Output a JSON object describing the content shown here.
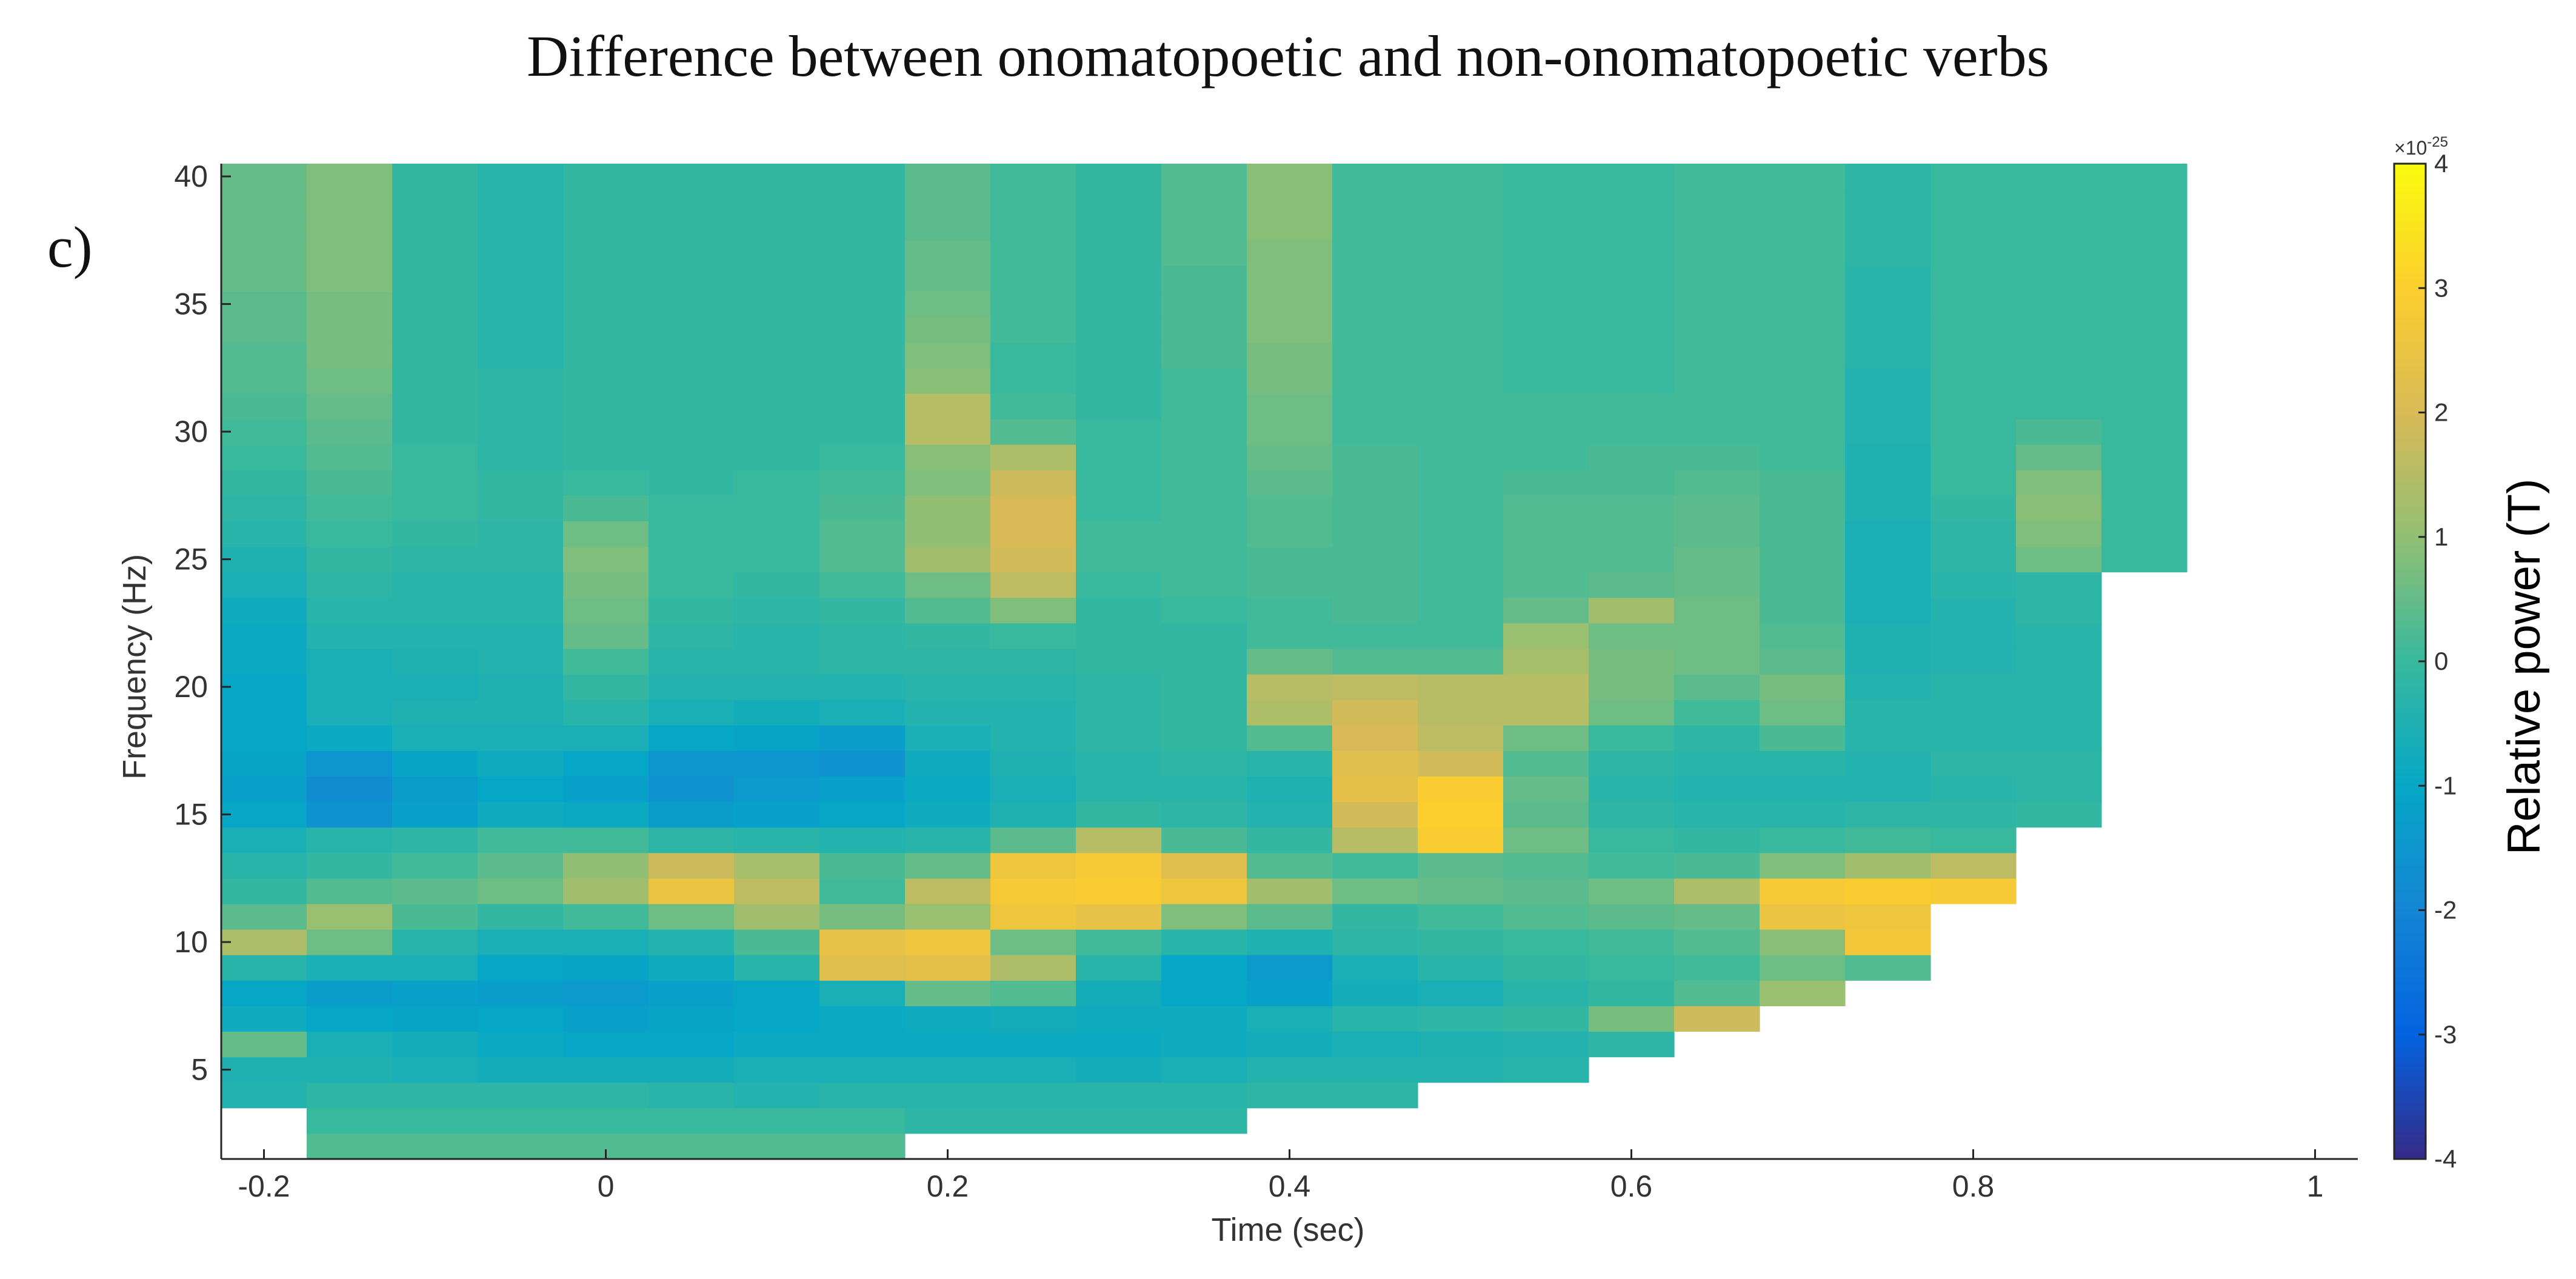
{
  "chart_data": {
    "type": "heatmap",
    "title": "Difference between onomatopoetic and non-onomatopoetic verbs",
    "panel_label": "c)",
    "xlabel": "Time (sec)",
    "ylabel": "Frequency (Hz)",
    "xlim": [
      -0.225,
      1.025
    ],
    "ylim": [
      1.5,
      40.5
    ],
    "x_ticks": [
      -0.2,
      0,
      0.2,
      0.4,
      0.6,
      0.8,
      1
    ],
    "x_tick_labels": [
      "-0.2",
      "0",
      "0.2",
      "0.4",
      "0.6",
      "0.8",
      "1"
    ],
    "y_ticks": [
      5,
      10,
      15,
      20,
      25,
      30,
      35,
      40
    ],
    "y_tick_labels": [
      "5",
      "10",
      "15",
      "20",
      "25",
      "30",
      "35",
      "40"
    ],
    "colorbar": {
      "label": "Relative power (T)",
      "exponent_base": "×10",
      "exponent_power": "-25",
      "range": [
        -4,
        4
      ],
      "ticks": [
        -4,
        -3,
        -2,
        -1,
        0,
        1,
        2,
        3,
        4
      ],
      "tick_labels": [
        "-4",
        "-3",
        "-2",
        "-1",
        "0",
        "1",
        "2",
        "3",
        "4"
      ],
      "colormap": "parula"
    },
    "grid": false,
    "times": [
      -0.2,
      -0.15,
      -0.1,
      -0.05,
      0,
      0.05,
      0.1,
      0.15,
      0.2,
      0.25,
      0.3,
      0.35,
      0.4,
      0.45,
      0.5,
      0.55,
      0.6,
      0.65,
      0.7,
      0.75,
      0.8,
      0.85,
      0.9
    ],
    "frequencies": [
      2,
      3,
      4,
      5,
      6,
      7,
      8,
      9,
      10,
      11,
      12,
      13,
      14,
      15,
      16,
      17,
      18,
      19,
      20,
      21,
      22,
      23,
      24,
      25,
      26,
      27,
      28,
      29,
      30,
      31,
      32,
      33,
      34,
      35,
      36,
      37,
      38,
      39,
      40
    ],
    "values": [
      [
        null,
        0.3,
        0.3,
        0.3,
        0.3,
        0.3,
        0.3,
        0.3,
        null,
        null,
        null,
        null,
        null,
        null,
        null,
        null,
        null,
        null,
        null,
        null,
        null,
        null,
        null
      ],
      [
        null,
        0.0,
        0.0,
        0.0,
        0.0,
        0.0,
        0.0,
        0.0,
        -0.2,
        -0.2,
        -0.2,
        -0.2,
        null,
        null,
        null,
        null,
        null,
        null,
        null,
        null,
        null,
        null,
        null
      ],
      [
        -0.4,
        -0.2,
        -0.2,
        -0.2,
        -0.2,
        -0.3,
        -0.4,
        -0.3,
        -0.3,
        -0.3,
        -0.3,
        -0.3,
        -0.2,
        -0.2,
        null,
        null,
        null,
        null,
        null,
        null,
        null,
        null,
        null
      ],
      [
        -0.5,
        -0.5,
        -0.6,
        -0.7,
        -0.7,
        -0.7,
        -0.6,
        -0.6,
        -0.6,
        -0.6,
        -0.7,
        -0.6,
        -0.4,
        -0.4,
        -0.4,
        -0.3,
        null,
        null,
        null,
        null,
        null,
        null,
        null
      ],
      [
        0.5,
        -0.6,
        -0.7,
        -0.9,
        -1.0,
        -1.0,
        -0.9,
        -0.9,
        -0.9,
        -0.9,
        -0.9,
        -0.8,
        -0.7,
        -0.6,
        -0.5,
        -0.4,
        -0.2,
        null,
        null,
        null,
        null,
        null,
        null
      ],
      [
        -0.8,
        -1.0,
        -1.1,
        -1.0,
        -1.2,
        -1.1,
        -1.0,
        -0.9,
        -0.8,
        -0.7,
        -0.8,
        -0.8,
        -0.6,
        -0.3,
        -0.2,
        -0.1,
        0.7,
        1.8,
        null,
        null,
        null,
        null,
        null
      ],
      [
        -1.0,
        -1.3,
        -1.2,
        -1.3,
        -1.4,
        -1.2,
        -1.0,
        -0.6,
        0.5,
        0.3,
        -0.7,
        -1.0,
        -1.2,
        -0.7,
        -0.6,
        -0.3,
        -0.1,
        0.3,
        1.1,
        null,
        null,
        null,
        null
      ],
      [
        -0.3,
        -0.6,
        -0.6,
        -1.0,
        -1.1,
        -0.8,
        -0.3,
        2.2,
        2.3,
        1.4,
        -0.3,
        -1.0,
        -1.4,
        -0.6,
        -0.3,
        -0.1,
        0.0,
        0.1,
        0.6,
        0.3,
        null,
        null,
        null
      ],
      [
        1.4,
        0.6,
        -0.3,
        -0.6,
        -0.6,
        -0.4,
        0.2,
        2.4,
        2.6,
        0.6,
        0.1,
        -0.3,
        -0.5,
        -0.2,
        -0.1,
        0.0,
        0.1,
        0.3,
        0.9,
        2.7,
        null,
        null,
        null
      ],
      [
        0.4,
        1.1,
        0.2,
        -0.1,
        0.1,
        0.6,
        1.2,
        0.7,
        1.1,
        2.6,
        2.4,
        0.8,
        0.4,
        -0.1,
        0.1,
        0.3,
        0.4,
        0.5,
        2.5,
        2.6,
        null,
        null,
        null
      ],
      [
        -0.1,
        0.3,
        0.4,
        0.6,
        1.2,
        2.5,
        1.6,
        0.1,
        1.6,
        2.8,
        2.9,
        2.6,
        1.2,
        0.6,
        0.5,
        0.4,
        0.6,
        1.4,
        2.8,
        2.9,
        2.8,
        null,
        null
      ],
      [
        -0.3,
        -0.1,
        0.1,
        0.4,
        1.0,
        1.8,
        1.3,
        0.2,
        0.5,
        2.6,
        2.8,
        2.2,
        0.3,
        0.1,
        0.4,
        0.3,
        0.1,
        0.2,
        0.8,
        1.2,
        1.6,
        null,
        null
      ],
      [
        -0.6,
        -0.3,
        -0.2,
        0.1,
        0.1,
        -0.2,
        -0.3,
        -0.4,
        -0.3,
        0.4,
        1.5,
        0.2,
        -0.1,
        1.5,
        2.9,
        0.6,
        0.0,
        -0.1,
        0.0,
        0.1,
        0.0,
        null,
        null
      ],
      [
        -1.0,
        -1.6,
        -1.2,
        -0.8,
        -0.9,
        -1.3,
        -1.2,
        -1.0,
        -0.8,
        -0.5,
        -0.1,
        -0.2,
        -0.4,
        1.9,
        3.0,
        0.4,
        -0.2,
        -0.3,
        -0.3,
        -0.2,
        -0.2,
        -0.1,
        null
      ],
      [
        -1.2,
        -1.8,
        -1.3,
        -1.0,
        -1.2,
        -1.6,
        -1.4,
        -1.2,
        -0.9,
        -0.6,
        -0.3,
        -0.3,
        -0.5,
        2.3,
        2.9,
        0.5,
        -0.3,
        -0.4,
        -0.4,
        -0.4,
        -0.3,
        -0.2,
        null
      ],
      [
        -1.1,
        -1.5,
        -1.1,
        -0.8,
        -1.0,
        -1.5,
        -1.5,
        -1.6,
        -0.8,
        -0.5,
        -0.3,
        -0.2,
        -0.3,
        2.2,
        1.9,
        0.3,
        -0.2,
        -0.3,
        -0.3,
        -0.4,
        -0.2,
        -0.2,
        null
      ],
      [
        -1.0,
        -0.9,
        -0.6,
        -0.6,
        -0.6,
        -1.0,
        -1.1,
        -1.3,
        -0.6,
        -0.4,
        -0.2,
        -0.1,
        0.3,
        2.0,
        1.6,
        0.6,
        0.0,
        -0.2,
        0.2,
        -0.3,
        -0.3,
        -0.3,
        null
      ],
      [
        -1.0,
        -0.6,
        -0.5,
        -0.5,
        -0.3,
        -0.6,
        -0.7,
        -0.6,
        -0.4,
        -0.4,
        -0.2,
        -0.1,
        1.4,
        1.9,
        1.5,
        1.5,
        0.6,
        0.1,
        0.6,
        -0.3,
        -0.3,
        -0.3,
        null
      ],
      [
        -1.0,
        -0.6,
        -0.6,
        -0.5,
        -0.1,
        -0.4,
        -0.4,
        -0.4,
        -0.3,
        -0.3,
        -0.2,
        -0.1,
        1.5,
        1.6,
        1.5,
        1.5,
        0.7,
        0.4,
        0.7,
        -0.4,
        -0.3,
        -0.3,
        null
      ],
      [
        -0.9,
        -0.6,
        -0.5,
        -0.4,
        0.1,
        -0.3,
        -0.3,
        -0.2,
        -0.2,
        -0.2,
        -0.1,
        -0.1,
        0.5,
        0.3,
        0.3,
        1.3,
        0.7,
        0.6,
        0.4,
        -0.5,
        -0.4,
        -0.3,
        null
      ],
      [
        -0.9,
        -0.4,
        -0.4,
        -0.4,
        0.5,
        -0.2,
        -0.3,
        -0.2,
        -0.1,
        0.0,
        -0.1,
        -0.1,
        0.1,
        0.1,
        0.1,
        1.1,
        0.6,
        0.6,
        0.3,
        -0.5,
        -0.4,
        -0.3,
        null
      ],
      [
        -0.8,
        -0.3,
        -0.3,
        -0.3,
        0.6,
        -0.1,
        -0.2,
        -0.1,
        0.3,
        0.8,
        -0.1,
        0.0,
        0.1,
        0.2,
        0.1,
        0.5,
        1.2,
        0.6,
        0.2,
        -0.6,
        -0.4,
        -0.2,
        null
      ],
      [
        -0.6,
        -0.2,
        -0.3,
        -0.3,
        0.7,
        0.0,
        -0.1,
        0.1,
        0.6,
        1.6,
        0.0,
        0.1,
        0.2,
        0.2,
        0.1,
        0.3,
        0.4,
        0.5,
        0.2,
        -0.6,
        -0.3,
        -0.2,
        null
      ],
      [
        -0.5,
        -0.1,
        -0.2,
        -0.2,
        0.8,
        0.0,
        0.0,
        0.3,
        1.2,
        1.9,
        0.1,
        0.1,
        0.2,
        0.2,
        0.1,
        0.3,
        0.3,
        0.5,
        0.2,
        -0.6,
        -0.2,
        0.6,
        0.0
      ],
      [
        -0.3,
        0.0,
        -0.1,
        -0.2,
        0.6,
        0.0,
        0.0,
        0.3,
        1.0,
        2.0,
        0.1,
        0.1,
        0.3,
        0.2,
        0.1,
        0.3,
        0.3,
        0.4,
        0.2,
        -0.6,
        -0.2,
        0.8,
        0.0
      ],
      [
        -0.2,
        0.1,
        0.0,
        -0.1,
        0.2,
        0.0,
        0.0,
        0.2,
        1.0,
        2.0,
        0.0,
        0.1,
        0.3,
        0.2,
        0.1,
        0.3,
        0.3,
        0.4,
        0.2,
        -0.5,
        -0.1,
        0.9,
        0.0
      ],
      [
        -0.1,
        0.2,
        0.0,
        -0.1,
        0.0,
        -0.1,
        0.0,
        0.1,
        0.8,
        1.8,
        0.0,
        0.1,
        0.4,
        0.2,
        0.1,
        0.2,
        0.2,
        0.3,
        0.2,
        -0.5,
        0.0,
        0.8,
        0.0
      ],
      [
        0.0,
        0.3,
        0.0,
        -0.2,
        -0.1,
        -0.1,
        -0.1,
        0.0,
        0.9,
        1.4,
        0.0,
        0.1,
        0.5,
        0.2,
        0.1,
        0.1,
        0.2,
        0.2,
        0.1,
        -0.5,
        0.0,
        0.5,
        0.0
      ],
      [
        0.1,
        0.4,
        -0.1,
        -0.2,
        -0.1,
        -0.1,
        -0.1,
        -0.1,
        1.5,
        0.3,
        0.0,
        0.1,
        0.6,
        0.1,
        0.1,
        0.1,
        0.1,
        0.1,
        0.1,
        -0.4,
        0.0,
        0.2,
        0.0
      ],
      [
        0.2,
        0.5,
        -0.1,
        -0.2,
        -0.1,
        -0.1,
        -0.1,
        -0.1,
        1.5,
        0.1,
        -0.1,
        0.1,
        0.6,
        0.1,
        0.1,
        0.1,
        0.1,
        0.1,
        0.1,
        -0.4,
        0.0,
        0.0,
        0.0
      ],
      [
        0.3,
        0.6,
        -0.1,
        -0.2,
        -0.1,
        -0.1,
        -0.1,
        -0.1,
        0.9,
        0.0,
        -0.1,
        0.1,
        0.7,
        0.1,
        0.1,
        0.0,
        0.0,
        0.1,
        0.1,
        -0.4,
        0.0,
        0.0,
        0.0
      ],
      [
        0.3,
        0.7,
        -0.1,
        -0.3,
        -0.1,
        -0.1,
        -0.1,
        -0.1,
        0.8,
        0.0,
        -0.1,
        0.2,
        0.7,
        0.1,
        0.1,
        0.0,
        0.0,
        0.1,
        0.1,
        -0.3,
        0.0,
        0.0,
        0.0
      ],
      [
        0.4,
        0.7,
        -0.1,
        -0.3,
        -0.1,
        -0.1,
        -0.1,
        -0.1,
        0.7,
        0.1,
        -0.1,
        0.2,
        0.8,
        0.1,
        0.1,
        0.0,
        0.0,
        0.1,
        0.1,
        -0.3,
        0.0,
        0.0,
        0.0
      ],
      [
        0.4,
        0.7,
        -0.1,
        -0.3,
        -0.1,
        -0.1,
        -0.1,
        -0.1,
        0.6,
        0.1,
        -0.1,
        0.2,
        0.8,
        0.1,
        0.1,
        0.0,
        0.0,
        0.1,
        0.1,
        -0.3,
        0.0,
        0.0,
        0.0
      ],
      [
        0.5,
        0.8,
        -0.1,
        -0.3,
        -0.1,
        -0.1,
        -0.1,
        -0.1,
        0.5,
        0.1,
        -0.1,
        0.2,
        0.8,
        0.1,
        0.1,
        0.0,
        0.0,
        0.1,
        0.1,
        -0.3,
        0.0,
        0.0,
        0.0
      ],
      [
        0.5,
        0.8,
        -0.1,
        -0.3,
        -0.1,
        -0.1,
        -0.1,
        -0.1,
        0.5,
        0.1,
        -0.1,
        0.3,
        0.8,
        0.1,
        0.1,
        0.0,
        0.0,
        0.1,
        0.1,
        -0.2,
        0.0,
        0.0,
        0.0
      ],
      [
        0.5,
        0.8,
        -0.1,
        -0.3,
        -0.1,
        -0.1,
        -0.1,
        -0.1,
        0.4,
        0.1,
        -0.1,
        0.3,
        0.9,
        0.1,
        0.1,
        0.0,
        0.0,
        0.1,
        0.1,
        -0.2,
        0.0,
        0.0,
        0.0
      ],
      [
        0.5,
        0.8,
        -0.1,
        -0.3,
        -0.1,
        -0.1,
        -0.1,
        -0.1,
        0.4,
        0.1,
        -0.1,
        0.3,
        0.9,
        0.1,
        0.1,
        0.0,
        0.0,
        0.1,
        0.1,
        -0.2,
        0.0,
        0.0,
        0.0
      ],
      [
        0.5,
        0.8,
        -0.1,
        -0.3,
        -0.1,
        -0.1,
        -0.1,
        -0.1,
        0.4,
        0.1,
        -0.1,
        0.3,
        0.9,
        0.1,
        0.1,
        0.0,
        0.0,
        0.1,
        0.1,
        -0.2,
        0.0,
        0.0,
        0.0
      ]
    ]
  }
}
